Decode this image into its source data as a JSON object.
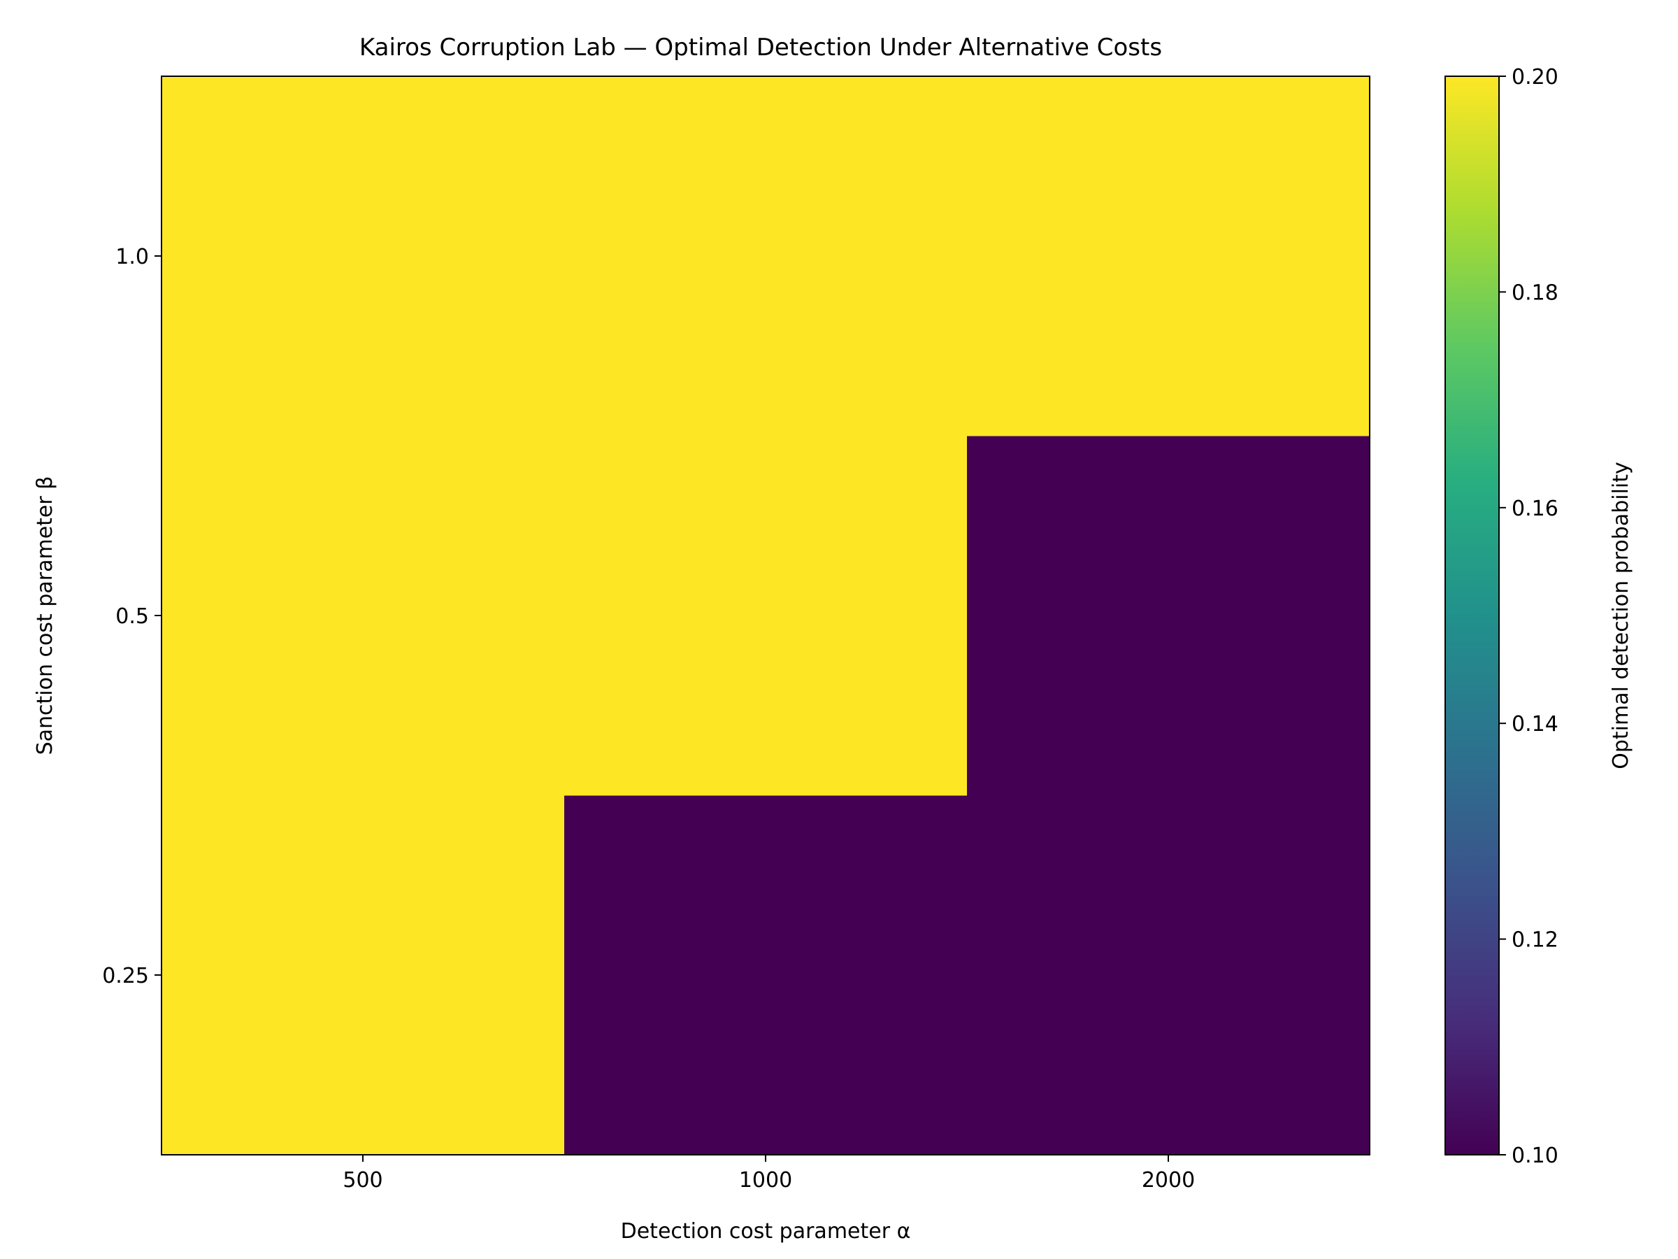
{
  "chart_data": {
    "type": "heatmap",
    "title": "Kairos Corruption Lab — Optimal Detection Under Alternative Costs",
    "xlabel": "Detection cost parameter α",
    "ylabel": "Sanction cost parameter β",
    "x_categories": [
      "500",
      "1000",
      "2000"
    ],
    "y_categories": [
      "0.25",
      "0.5",
      "1.0"
    ],
    "values": [
      [
        0.2,
        0.1,
        0.1
      ],
      [
        0.2,
        0.2,
        0.1
      ],
      [
        0.2,
        0.2,
        0.2
      ]
    ],
    "colorbar": {
      "label": "Optimal detection probability",
      "min": 0.1,
      "max": 0.2,
      "ticks": [
        "0.10",
        "0.12",
        "0.14",
        "0.16",
        "0.18",
        "0.20"
      ],
      "colormap": "viridis"
    },
    "colors": {
      "low": "#440154",
      "high": "#fde725"
    },
    "grid": false
  }
}
